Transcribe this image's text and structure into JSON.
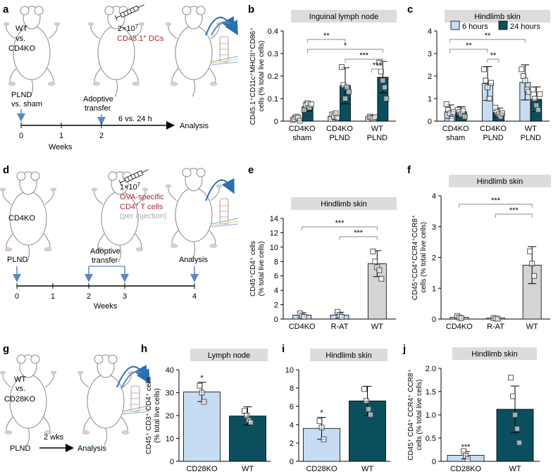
{
  "colors": {
    "light": "#c5dcf3",
    "dark": "#0b4f5f",
    "gray": "#d4d4d4",
    "arrow": "#5a89bf",
    "red": "#b0262c",
    "panelbox": "#dcdcdc"
  },
  "schemes": {
    "a": {
      "letter": "a",
      "mouse_label_1": "WT",
      "mouse_label_2": "vs.",
      "mouse_label_3": "CD4KO",
      "dose": "2×10",
      "dose_exp": "7",
      "cells": "CD45.1",
      "cells_sup": "+",
      "cells_tail": " DCs",
      "t1": "PLND",
      "t2": "vs. sham",
      "t3": "Adoptive",
      "t4": "transfer",
      "ticks": [
        "0",
        "1",
        "2"
      ],
      "weeks": "Weeks",
      "interval": "6 vs. 24 h",
      "analysis": "Analysis"
    },
    "d": {
      "letter": "d",
      "mouse_label": "CD4KO",
      "dose": "1×10",
      "dose_exp": "7",
      "line1": "OVA-specific",
      "line2": "CD4",
      "line2_sup": "+",
      "line2_tail": " T cells",
      "line3": "(per injection)",
      "t1": "PLND",
      "t2": "Adoptive",
      "t3": "transfer",
      "t4": "Analysis",
      "ticks": [
        "0",
        "1",
        "2",
        "3",
        "4"
      ],
      "weeks": "Weeks"
    },
    "g": {
      "letter": "g",
      "mouse_label_1": "WT",
      "mouse_label_2": "vs.",
      "mouse_label_3": "CD28KO",
      "t1": "PLND",
      "t2": "2 wks",
      "t3": "Analysis"
    }
  },
  "chart_data": [
    {
      "panel": "b",
      "type": "bar",
      "title": "Inguinal lymph node",
      "ylabel_1": "CD45.1⁺CD11c⁺MHCII⁺CD86⁺",
      "ylabel_2": "cells (% total live cells)",
      "ylim": [
        0,
        0.4
      ],
      "ticks": [
        "0",
        "0.1",
        "0.2",
        "0.3",
        "0.4"
      ],
      "categories": [
        [
          "CD4KO",
          "sham"
        ],
        [
          "CD4KO",
          "PLND"
        ],
        [
          "WT",
          "PLND"
        ]
      ],
      "series": [
        {
          "name": "6 hours",
          "values": [
            0.012,
            0.022,
            0.015
          ],
          "err": [
            0.012,
            0.015,
            0.008
          ]
        },
        {
          "name": "24 hours",
          "values": [
            0.065,
            0.157,
            0.195
          ],
          "err": [
            0.02,
            0.08,
            0.07
          ]
        }
      ],
      "points": [
        [
          [
            0.005,
            0.01,
            0.02,
            0.015,
            0.002
          ],
          [
            0.05,
            0.07,
            0.08,
            0.06,
            0.075
          ]
        ],
        [
          [
            0.01,
            0.03,
            0.02,
            0.035,
            0.015
          ],
          [
            0.24,
            0.16,
            0.1,
            0.15,
            0.13
          ]
        ],
        [
          [
            0.01,
            0.02,
            0.015,
            0.012,
            0.018
          ],
          [
            0.26,
            0.22,
            0.18,
            0.15,
            0.1
          ]
        ]
      ],
      "sig": [
        {
          "from": 1,
          "to": 3,
          "label": "**"
        },
        {
          "from": 1,
          "to": 5,
          "label": "*"
        },
        {
          "from": 3,
          "to": 5,
          "label": "***"
        },
        {
          "from": 4,
          "to": 5,
          "label": "***"
        }
      ]
    },
    {
      "panel": "c",
      "type": "bar",
      "title": "Hindlimb skin",
      "ylabel_1": "",
      "ylabel_2": "",
      "ylim": [
        0,
        4
      ],
      "ticks": [
        "0",
        "1",
        "2",
        "3",
        "4"
      ],
      "categories": [
        [
          "CD4KO",
          "sham"
        ],
        [
          "CD4KO",
          "PLND"
        ],
        [
          "WT",
          "PLND"
        ]
      ],
      "legend": [
        "6 hours",
        "24 hours"
      ],
      "series": [
        {
          "name": "6 hours",
          "values": [
            0.42,
            1.67,
            1.72
          ],
          "err": [
            0.3,
            0.75,
            0.78
          ]
        },
        {
          "name": "24 hours",
          "values": [
            0.42,
            0.38,
            0.97
          ],
          "err": [
            0.22,
            0.2,
            0.55
          ]
        }
      ],
      "points": [
        [
          [
            0.75,
            0.5,
            0.35,
            0.1,
            0.4
          ],
          [
            0.5,
            0.4,
            0.3,
            0.45,
            0.2
          ]
        ],
        [
          [
            2.3,
            1.8,
            1.5,
            1.0,
            1.7
          ],
          [
            0.6,
            0.4,
            0.3,
            0.2,
            0.35
          ]
        ],
        [
          [
            2.3,
            2.0,
            1.8,
            1.4,
            1.3
          ],
          [
            1.4,
            1.0,
            0.7,
            0.5,
            1.2
          ]
        ]
      ],
      "sig": [
        {
          "from": 0,
          "to": 4,
          "label": "**"
        },
        {
          "from": 0,
          "to": 2,
          "label": "**"
        },
        {
          "from": 2,
          "to": 3,
          "label": "**"
        }
      ]
    },
    {
      "panel": "e",
      "type": "bar",
      "title": "Hindlimb skin",
      "ylabel_1": "CD45⁺CD4⁺ cells",
      "ylabel_2": "(% total live cells)",
      "ylim": [
        0,
        14
      ],
      "ticks": [
        "0",
        "2",
        "4",
        "6",
        "8",
        "10",
        "12",
        "14"
      ],
      "categories": [
        [
          "CD4KO"
        ],
        [
          "R-AT"
        ],
        [
          "WT"
        ]
      ],
      "series": [
        {
          "name": "value",
          "values": [
            0.55,
            0.55,
            7.7
          ],
          "err": [
            0.35,
            0.4,
            1.8
          ]
        }
      ],
      "points": [
        [
          [
            0.8,
            0.4,
            0.3
          ]
        ],
        [
          [
            1.0,
            0.5,
            0.3
          ]
        ],
        [
          [
            9.4,
            8.0,
            7.2,
            6.8,
            5.6
          ]
        ]
      ],
      "sig": [
        {
          "from": 0,
          "to": 2,
          "label": "***"
        },
        {
          "from": 1,
          "to": 2,
          "label": "***"
        }
      ]
    },
    {
      "panel": "f",
      "type": "bar",
      "title": "Hindlimb skin",
      "ylabel_1": "CD45⁺CD4⁺CCR4⁺CCR8⁺",
      "ylabel_2": "cells (% total live cells)",
      "ylim": [
        0,
        4
      ],
      "ticks": [
        "0",
        "1",
        "2",
        "3",
        "4"
      ],
      "categories": [
        [
          "CD4KO"
        ],
        [
          "R-AT"
        ],
        [
          "WT"
        ]
      ],
      "series": [
        {
          "name": "value",
          "values": [
            0.06,
            0.03,
            1.75
          ],
          "err": [
            0.05,
            0.03,
            0.6
          ]
        }
      ],
      "points": [
        [
          [
            0.1,
            0.05,
            0.03
          ]
        ],
        [
          [
            0.03,
            0.02,
            0.01
          ]
        ],
        [
          [
            2.2,
            1.8,
            1.4
          ]
        ]
      ],
      "sig": [
        {
          "from": 0,
          "to": 2,
          "label": "***"
        },
        {
          "from": 1,
          "to": 2,
          "label": "***"
        }
      ]
    },
    {
      "panel": "h",
      "type": "bar",
      "title": "Lymph node",
      "ylabel_1": "CD45⁺ CD3⁺ CD4⁺ cells",
      "ylabel_2": "(% total live cells)",
      "ylim": [
        0,
        40
      ],
      "ticks": [
        "0",
        "10",
        "20",
        "30",
        "40"
      ],
      "categories": [
        [
          "CD28KO"
        ],
        [
          "WT"
        ]
      ],
      "series": [
        {
          "name": "value",
          "values": [
            30.3,
            19.8
          ],
          "err": [
            4.2,
            4.0
          ]
        }
      ],
      "points": [
        [
          [
            33,
            30,
            26
          ]
        ],
        [
          [
            22,
            20,
            18,
            17
          ]
        ]
      ],
      "marks": [
        "*",
        ""
      ]
    },
    {
      "panel": "i",
      "type": "bar",
      "title": "Hindlimb skin",
      "ylabel_1": "",
      "ylabel_2": "",
      "ylim": [
        0,
        10
      ],
      "ticks": [
        "0",
        "2",
        "4",
        "6",
        "8",
        "10"
      ],
      "categories": [
        [
          "CD28KO"
        ],
        [
          "WT"
        ]
      ],
      "series": [
        {
          "name": "value",
          "values": [
            3.6,
            6.6
          ],
          "err": [
            1.2,
            1.6
          ]
        }
      ],
      "points": [
        [
          [
            4.4,
            3.7,
            2.4
          ]
        ],
        [
          [
            7.9,
            6.6,
            5.7,
            5.1
          ]
        ]
      ],
      "marks": [
        "*",
        ""
      ]
    },
    {
      "panel": "j",
      "type": "bar",
      "title": "Hindlimb skin",
      "ylabel_1": "CD45⁺ CD4⁺ CCR4⁺ CCR8⁺",
      "ylabel_2": "cells (% total live cells)",
      "ylim": [
        0,
        2.0
      ],
      "ticks": [
        "0",
        "0.5",
        "1.0",
        "1.5",
        "2.0"
      ],
      "categories": [
        [
          "CD28KO"
        ],
        [
          "WT"
        ]
      ],
      "series": [
        {
          "name": "value",
          "values": [
            0.13,
            1.12
          ],
          "err": [
            0.08,
            0.5
          ]
        }
      ],
      "points": [
        [
          [
            0.22,
            0.12,
            0.05
          ]
        ],
        [
          [
            1.8,
            1.4,
            1.0,
            0.7,
            0.4
          ]
        ]
      ],
      "marks": [
        "***",
        ""
      ]
    }
  ]
}
